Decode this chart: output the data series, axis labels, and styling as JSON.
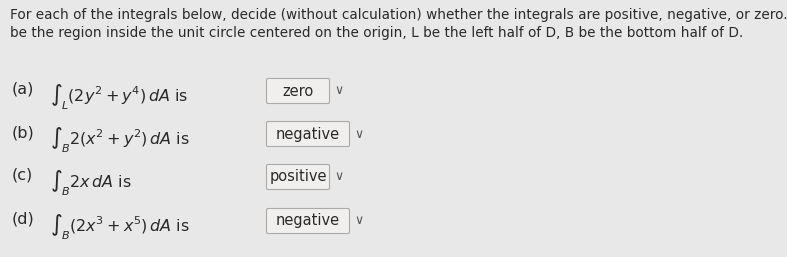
{
  "page_bg": "#e8e8e8",
  "items": [
    {
      "label": "(a)",
      "integral_latex": "$\\int_L(2y^2 + y^4)\\,dA$ is",
      "answer": "zero"
    },
    {
      "label": "(b)",
      "integral_latex": "$\\int_B 2(x^2 + y^2)\\,dA$ is",
      "answer": "negative"
    },
    {
      "label": "(c)",
      "integral_latex": "$\\int_B 2x\\,dA$ is",
      "answer": "positive"
    },
    {
      "label": "(d)",
      "integral_latex": "$\\int_B(2x^3 + x^5)\\,dA$ is",
      "answer": "negative"
    }
  ],
  "header_line1": "For each of the integrals below, decide (without calculation) whether the integrals are positive, negative, or zero. Let D",
  "header_line2": "be the region inside the unit circle centered on the origin, L be the left half of D, B be the bottom half of D.",
  "box_facecolor": "#f0efed",
  "box_edgecolor": "#aaaaaa",
  "text_color": "#2a2a2a",
  "header_fontsize": 9.8,
  "item_fontsize": 11.5,
  "answer_fontsize": 10.5,
  "chevron_color": "#555555",
  "fig_width": 7.87,
  "fig_height": 2.57,
  "dpi": 100
}
